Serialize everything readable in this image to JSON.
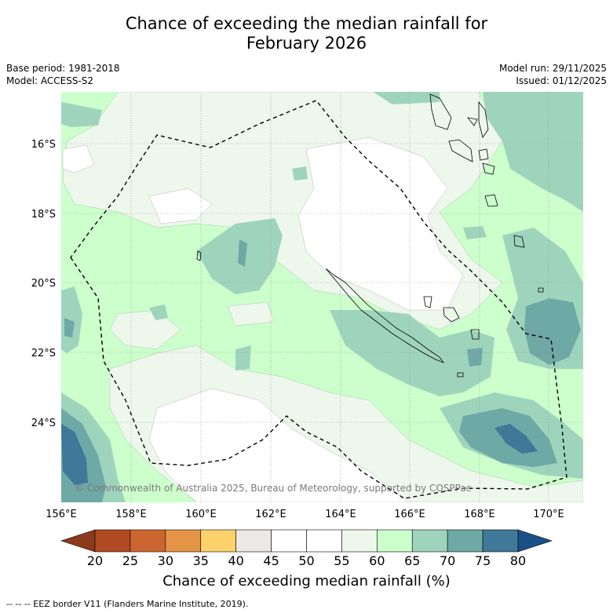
{
  "title": {
    "line1": "Chance of exceeding the median rainfall for",
    "line2": "February 2026"
  },
  "meta": {
    "base_period": "Base period: 1981-2018",
    "model": "Model: ACCESS-S2",
    "model_run": "Model run: 29/11/2025",
    "issued": "Issued: 01/12/2025"
  },
  "map": {
    "lon_labels": [
      "156°E",
      "158°E",
      "160°E",
      "162°E",
      "164°E",
      "166°E",
      "168°E",
      "170°E"
    ],
    "lat_labels": [
      "16°S",
      "18°S",
      "20°S",
      "22°S",
      "24°S"
    ],
    "copyright": "© Commonwealth of Australia 2025, Bureau of Meteorology, supported by COSPPac"
  },
  "colorbar": {
    "title": "Chance of exceeding median rainfall (%)",
    "ticks": [
      "20",
      "25",
      "30",
      "35",
      "40",
      "45",
      "50",
      "55",
      "60",
      "65",
      "70",
      "75",
      "80"
    ],
    "colors": [
      "#8c3a1c",
      "#b04a22",
      "#cc6630",
      "#e39446",
      "#fdd26c",
      "#ebe9e6",
      "#ffffff",
      "#ffffff",
      "#edf7ec",
      "#ccffcc",
      "#9fd4bc",
      "#6fa9a6",
      "#3f7898",
      "#1b4f87"
    ]
  },
  "footnote": "-- -- -- EEZ border V11 (Flanders Marine Institute, 2019)."
}
